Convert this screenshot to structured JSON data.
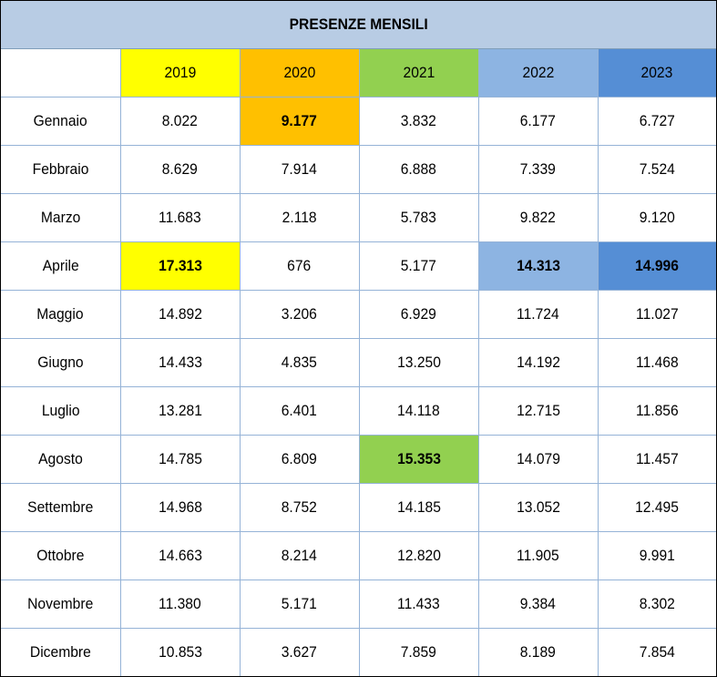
{
  "title": "PRESENZE MENSILI",
  "colors": {
    "title_bg": "#b8cce4",
    "2019": "#ffff00",
    "2020": "#ffc000",
    "2021": "#92d050",
    "2022": "#8db4e2",
    "2023": "#558ed5"
  },
  "years": [
    "2019",
    "2020",
    "2021",
    "2022",
    "2023"
  ],
  "rows": [
    {
      "month": "Gennaio",
      "values": [
        "8.022",
        "9.177",
        "3.832",
        "6.177",
        "6.727"
      ],
      "max_col": 1
    },
    {
      "month": "Febbraio",
      "values": [
        "8.629",
        "7.914",
        "6.888",
        "7.339",
        "7.524"
      ],
      "max_col": -1
    },
    {
      "month": "Marzo",
      "values": [
        "11.683",
        "2.118",
        "5.783",
        "9.822",
        "9.120"
      ],
      "max_col": -1
    },
    {
      "month": "Aprile",
      "values": [
        "17.313",
        "676",
        "5.177",
        "14.313",
        "14.996"
      ],
      "max_col": [
        0,
        3,
        4
      ]
    },
    {
      "month": "Maggio",
      "values": [
        "14.892",
        "3.206",
        "6.929",
        "11.724",
        "11.027"
      ],
      "max_col": -1
    },
    {
      "month": "Giugno",
      "values": [
        "14.433",
        "4.835",
        "13.250",
        "14.192",
        "11.468"
      ],
      "max_col": -1
    },
    {
      "month": "Luglio",
      "values": [
        "13.281",
        "6.401",
        "14.118",
        "12.715",
        "11.856"
      ],
      "max_col": -1
    },
    {
      "month": "Agosto",
      "values": [
        "14.785",
        "6.809",
        "15.353",
        "14.079",
        "11.457"
      ],
      "max_col": 2
    },
    {
      "month": "Settembre",
      "values": [
        "14.968",
        "8.752",
        "14.185",
        "13.052",
        "12.495"
      ],
      "max_col": -1
    },
    {
      "month": "Ottobre",
      "values": [
        "14.663",
        "8.214",
        "12.820",
        "11.905",
        "9.991"
      ],
      "max_col": -1
    },
    {
      "month": "Novembre",
      "values": [
        "11.380",
        "5.171",
        "11.433",
        "9.384",
        "8.302"
      ],
      "max_col": -1
    },
    {
      "month": "Dicembre",
      "values": [
        "10.853",
        "3.627",
        "7.859",
        "8.189",
        "7.854"
      ],
      "max_col": -1
    }
  ]
}
